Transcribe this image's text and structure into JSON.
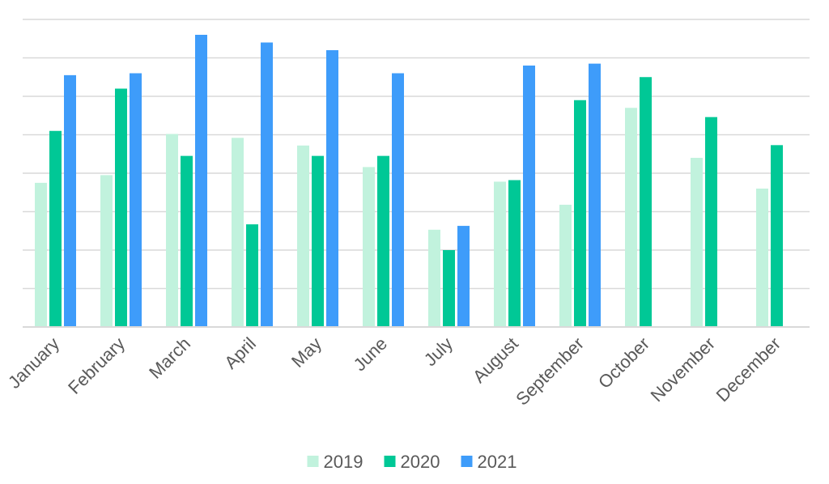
{
  "chart_data": {
    "type": "bar",
    "title": "",
    "xlabel": "",
    "ylabel": "",
    "ylim": [
      0,
      80
    ],
    "grid": true,
    "y_tick_labels_visible": false,
    "legend_position": "bottom",
    "categories": [
      "January",
      "February",
      "March",
      "April",
      "May",
      "June",
      "July",
      "August",
      "September",
      "October",
      "November",
      "December"
    ],
    "series": [
      {
        "name": "2019",
        "color": "#c1f2dd",
        "values": [
          37.5,
          39.5,
          50.2,
          49.2,
          47.2,
          41.6,
          25.3,
          37.8,
          31.8,
          57.0,
          44.0,
          36.0
        ]
      },
      {
        "name": "2020",
        "color": "#00c896",
        "values": [
          51.0,
          62.0,
          44.5,
          26.7,
          44.5,
          44.5,
          20.0,
          38.2,
          59.0,
          65.0,
          54.6,
          47.3
        ]
      },
      {
        "name": "2021",
        "color": "#3e9cfa",
        "values": [
          65.5,
          66.0,
          76.0,
          74.0,
          72.0,
          66.0,
          26.3,
          68.0,
          68.5,
          null,
          null,
          null
        ]
      }
    ]
  }
}
